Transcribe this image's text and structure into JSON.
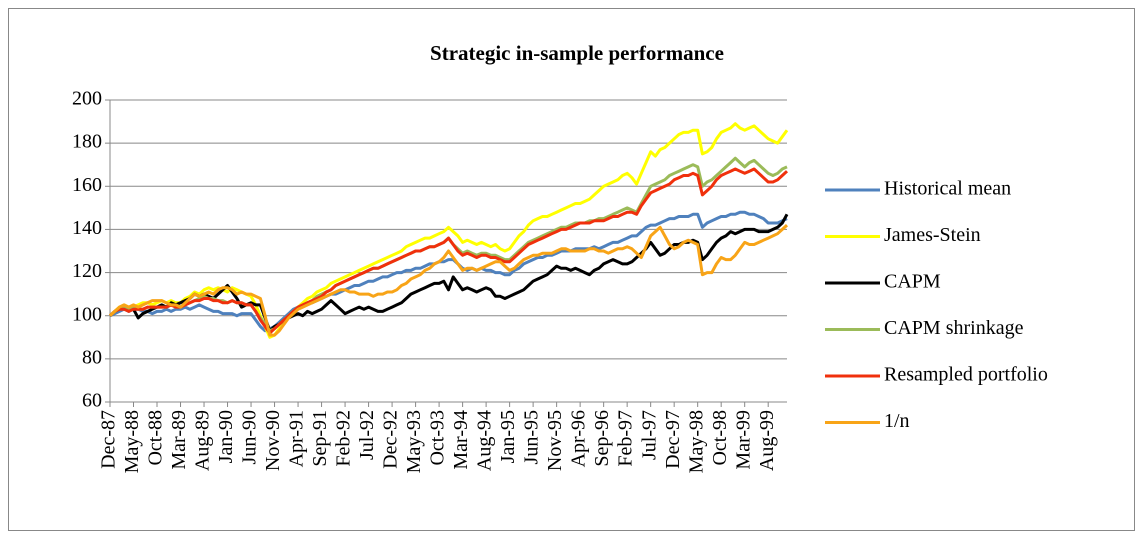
{
  "chart_data": {
    "type": "line",
    "title": "Strategic in-sample performance",
    "categories": [
      "Dec-87",
      null,
      null,
      null,
      null,
      "May-88",
      null,
      null,
      null,
      null,
      "Oct-88",
      null,
      null,
      null,
      null,
      "Mar-89",
      null,
      null,
      null,
      null,
      "Aug-89",
      null,
      null,
      null,
      null,
      "Jan-90",
      null,
      null,
      null,
      null,
      "Jun-90",
      null,
      null,
      null,
      null,
      "Nov-90",
      null,
      null,
      null,
      null,
      "Apr-91",
      null,
      null,
      null,
      null,
      "Sep-91",
      null,
      null,
      null,
      null,
      "Feb-92",
      null,
      null,
      null,
      null,
      "Jul-92",
      null,
      null,
      null,
      null,
      "Dec-92",
      null,
      null,
      null,
      null,
      "May-93",
      null,
      null,
      null,
      null,
      "Oct-93",
      null,
      null,
      null,
      null,
      "Mar-94",
      null,
      null,
      null,
      null,
      "Aug-94",
      null,
      null,
      null,
      null,
      "Jan-95",
      null,
      null,
      null,
      null,
      "Jun-95",
      null,
      null,
      null,
      null,
      "Nov-95",
      null,
      null,
      null,
      null,
      "Apr-96",
      null,
      null,
      null,
      null,
      "Sep-96",
      null,
      null,
      null,
      null,
      "Feb-97",
      null,
      null,
      null,
      null,
      "Jul-97",
      null,
      null,
      null,
      null,
      "Dec-97",
      null,
      null,
      null,
      null,
      "May-98",
      null,
      null,
      null,
      null,
      "Oct-98",
      null,
      null,
      null,
      null,
      "Mar-99",
      null,
      null,
      null,
      null,
      "Aug-99",
      null,
      null,
      null,
      null
    ],
    "series": [
      {
        "name": "Historical mean",
        "color": "#4f81bd",
        "values": [
          100,
          101,
          102,
          103,
          102,
          103,
          103,
          102,
          102,
          101,
          102,
          102,
          103,
          102,
          103,
          103,
          104,
          103,
          104,
          105,
          104,
          103,
          102,
          102,
          101,
          101,
          101,
          100,
          101,
          101,
          101,
          98,
          95,
          93,
          94,
          95,
          97,
          99,
          101,
          103,
          104,
          105,
          106,
          106,
          107,
          108,
          109,
          110,
          110,
          111,
          112,
          113,
          114,
          114,
          115,
          116,
          116,
          117,
          118,
          118,
          119,
          120,
          120,
          121,
          121,
          122,
          122,
          123,
          124,
          124,
          125,
          125,
          126,
          126,
          124,
          122,
          121,
          122,
          121,
          122,
          121,
          121,
          120,
          120,
          119,
          119,
          121,
          122,
          124,
          125,
          126,
          127,
          127,
          128,
          128,
          129,
          130,
          130,
          130,
          131,
          131,
          131,
          131,
          132,
          131,
          132,
          133,
          134,
          134,
          135,
          136,
          137,
          137,
          139,
          141,
          142,
          142,
          143,
          144,
          145,
          145,
          146,
          146,
          146,
          147,
          147,
          141,
          143,
          144,
          145,
          146,
          146,
          147,
          147,
          148,
          148,
          147,
          147,
          146,
          145,
          143,
          143,
          143,
          144,
          145
        ]
      },
      {
        "name": "James-Stein",
        "color": "#ffff00",
        "values": [
          100,
          102,
          104,
          105,
          104,
          104,
          105,
          106,
          106,
          105,
          106,
          107,
          106,
          107,
          106,
          106,
          108,
          109,
          111,
          110,
          112,
          113,
          112,
          113,
          112,
          111,
          113,
          112,
          111,
          110,
          109,
          105,
          100,
          95,
          90,
          91,
          94,
          97,
          100,
          102,
          104,
          106,
          108,
          109,
          111,
          112,
          113,
          115,
          116,
          117,
          118,
          119,
          120,
          121,
          122,
          123,
          124,
          125,
          126,
          127,
          128,
          129,
          130,
          132,
          133,
          134,
          135,
          136,
          136,
          137,
          138,
          139,
          141,
          139,
          137,
          134,
          135,
          134,
          133,
          134,
          133,
          132,
          133,
          131,
          130,
          131,
          134,
          137,
          139,
          142,
          144,
          145,
          146,
          146,
          147,
          148,
          149,
          150,
          151,
          152,
          152,
          153,
          154,
          156,
          158,
          160,
          161,
          162,
          163,
          165,
          166,
          164,
          161,
          166,
          171,
          176,
          174,
          177,
          178,
          180,
          182,
          184,
          185,
          185,
          186,
          186,
          175,
          176,
          178,
          182,
          185,
          186,
          187,
          189,
          187,
          186,
          187,
          188,
          186,
          184,
          182,
          181,
          180,
          183,
          186
        ]
      },
      {
        "name": "CAPM",
        "color": "#000000",
        "values": [
          100,
          102,
          103,
          104,
          103,
          103,
          99,
          101,
          102,
          103,
          104,
          105,
          104,
          106,
          105,
          106,
          107,
          108,
          110,
          109,
          110,
          109,
          108,
          110,
          112,
          114,
          111,
          108,
          104,
          105,
          106,
          105,
          105,
          99,
          93,
          95,
          96,
          98,
          99,
          100,
          101,
          100,
          102,
          101,
          102,
          103,
          105,
          107,
          105,
          103,
          101,
          102,
          103,
          104,
          103,
          104,
          103,
          102,
          102,
          103,
          104,
          105,
          106,
          108,
          110,
          111,
          112,
          113,
          114,
          115,
          115,
          116,
          112,
          118,
          115,
          112,
          113,
          112,
          111,
          112,
          113,
          112,
          109,
          109,
          108,
          109,
          110,
          111,
          112,
          114,
          116,
          117,
          118,
          119,
          121,
          123,
          122,
          122,
          121,
          122,
          121,
          120,
          119,
          121,
          122,
          124,
          125,
          126,
          125,
          124,
          124,
          125,
          127,
          129,
          131,
          134,
          131,
          128,
          129,
          131,
          133,
          133,
          134,
          134,
          135,
          134,
          126,
          128,
          131,
          134,
          136,
          137,
          139,
          138,
          139,
          140,
          140,
          140,
          139,
          139,
          139,
          140,
          141,
          143,
          147
        ]
      },
      {
        "name": "CAPM shrinkage",
        "color": "#9bbb59",
        "values": [
          100,
          102,
          103,
          104,
          103,
          104,
          103,
          103,
          104,
          104,
          104,
          104,
          104,
          105,
          104,
          104,
          105,
          106,
          107,
          108,
          109,
          108,
          108,
          107,
          107,
          106,
          107,
          106,
          106,
          105,
          105,
          102,
          99,
          96,
          93,
          94,
          96,
          98,
          100,
          102,
          104,
          105,
          106,
          107,
          109,
          110,
          111,
          112,
          114,
          115,
          116,
          117,
          118,
          119,
          120,
          121,
          122,
          122,
          123,
          124,
          125,
          126,
          127,
          128,
          129,
          130,
          130,
          131,
          132,
          132,
          133,
          134,
          136,
          133,
          131,
          129,
          130,
          129,
          128,
          129,
          129,
          128,
          128,
          127,
          126,
          126,
          128,
          130,
          132,
          134,
          135,
          136,
          137,
          138,
          139,
          140,
          141,
          141,
          142,
          143,
          143,
          143,
          144,
          144,
          145,
          145,
          146,
          147,
          148,
          149,
          150,
          149,
          148,
          152,
          156,
          160,
          161,
          162,
          163,
          165,
          166,
          167,
          168,
          169,
          170,
          169,
          160,
          162,
          163,
          165,
          167,
          169,
          171,
          173,
          171,
          169,
          171,
          172,
          170,
          168,
          166,
          165,
          166,
          168,
          169
        ]
      },
      {
        "name": "Resampled portfolio",
        "color": "#f0300c",
        "values": [
          100,
          102,
          103,
          103,
          102,
          103,
          103,
          103,
          104,
          104,
          104,
          104,
          104,
          105,
          104,
          104,
          105,
          106,
          107,
          107,
          108,
          108,
          107,
          107,
          106,
          106,
          107,
          106,
          106,
          105,
          105,
          102,
          98,
          95,
          92,
          94,
          96,
          98,
          100,
          102,
          104,
          105,
          106,
          107,
          108,
          109,
          111,
          112,
          114,
          115,
          116,
          117,
          118,
          119,
          120,
          121,
          122,
          122,
          123,
          124,
          125,
          126,
          127,
          128,
          129,
          130,
          130,
          131,
          132,
          132,
          133,
          134,
          136,
          133,
          130,
          128,
          129,
          128,
          127,
          128,
          128,
          127,
          127,
          126,
          125,
          125,
          127,
          129,
          131,
          133,
          134,
          135,
          136,
          137,
          138,
          139,
          140,
          140,
          141,
          142,
          143,
          143,
          143,
          144,
          144,
          144,
          145,
          146,
          146,
          147,
          148,
          148,
          147,
          151,
          154,
          157,
          158,
          159,
          160,
          161,
          163,
          164,
          165,
          165,
          166,
          165,
          156,
          158,
          160,
          163,
          165,
          166,
          167,
          168,
          167,
          166,
          167,
          168,
          166,
          164,
          162,
          162,
          163,
          165,
          167
        ]
      },
      {
        "name": "1/n",
        "color": "#f8a417",
        "values": [
          100,
          102,
          104,
          105,
          104,
          105,
          104,
          105,
          106,
          107,
          107,
          107,
          106,
          105,
          105,
          104,
          106,
          108,
          110,
          109,
          110,
          111,
          110,
          112,
          113,
          113,
          112,
          110,
          111,
          110,
          110,
          109,
          108,
          100,
          91,
          91,
          93,
          96,
          99,
          101,
          103,
          104,
          105,
          106,
          107,
          108,
          109,
          110,
          111,
          112,
          112,
          111,
          111,
          110,
          110,
          110,
          109,
          110,
          110,
          111,
          111,
          112,
          114,
          115,
          117,
          118,
          119,
          121,
          122,
          124,
          125,
          127,
          130,
          127,
          124,
          121,
          122,
          122,
          121,
          122,
          123,
          124,
          125,
          125,
          123,
          121,
          122,
          124,
          126,
          127,
          128,
          128,
          129,
          129,
          129,
          130,
          131,
          131,
          130,
          130,
          130,
          130,
          131,
          131,
          130,
          130,
          129,
          130,
          131,
          131,
          132,
          131,
          129,
          127,
          132,
          137,
          139,
          141,
          137,
          133,
          131,
          132,
          134,
          135,
          134,
          133,
          119,
          120,
          120,
          124,
          127,
          126,
          126,
          128,
          131,
          134,
          133,
          133,
          134,
          135,
          136,
          137,
          138,
          140,
          142
        ]
      }
    ],
    "ylim": [
      60,
      200
    ],
    "yticks": [
      60,
      80,
      100,
      120,
      140,
      160,
      180,
      200
    ],
    "grid": true,
    "legend": "right"
  }
}
